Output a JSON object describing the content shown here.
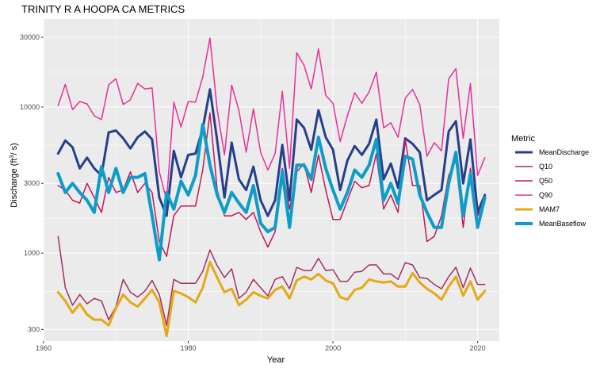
{
  "chart_data": {
    "type": "line",
    "title": "TRINITY R A HOOPA CA  METRICS",
    "xlabel": "Year",
    "ylabel": "Discharge (ft",
    "ylabel_sup": "3",
    "ylabel_suffix": "/ s)",
    "xlim": [
      1960,
      2023
    ],
    "ylim": [
      250,
      40000
    ],
    "y_scale": "log10",
    "x_ticks": [
      1960,
      1980,
      2000,
      2020
    ],
    "x_tick_labels": [
      "1960",
      "1980",
      "2000",
      "2020"
    ],
    "y_ticks": [
      300,
      1000,
      3000,
      10000,
      30000
    ],
    "y_tick_labels": [
      "300",
      "1000",
      "3000",
      "10000",
      "30000"
    ],
    "grid": true,
    "legend_title": "Metric",
    "legend_position": "right",
    "x": [
      1962,
      1963,
      1964,
      1965,
      1966,
      1967,
      1968,
      1969,
      1970,
      1971,
      1972,
      1973,
      1974,
      1975,
      1976,
      1977,
      1978,
      1979,
      1980,
      1981,
      1982,
      1983,
      1984,
      1985,
      1986,
      1987,
      1988,
      1989,
      1990,
      1991,
      1992,
      1993,
      1994,
      1995,
      1996,
      1997,
      1998,
      1999,
      2000,
      2001,
      2002,
      2003,
      2004,
      2005,
      2006,
      2007,
      2008,
      2009,
      2010,
      2011,
      2012,
      2013,
      2014,
      2015,
      2016,
      2017,
      2018,
      2019,
      2020,
      2021
    ],
    "series": [
      {
        "name": "MeanDischarge",
        "color": "#263F8C",
        "width": 3,
        "values": [
          4800,
          5900,
          5300,
          3800,
          4500,
          3800,
          3400,
          6700,
          6900,
          6100,
          5200,
          6200,
          6800,
          6000,
          2400,
          1800,
          5000,
          3300,
          4700,
          4800,
          7100,
          13200,
          5900,
          2400,
          5700,
          3200,
          2700,
          3900,
          2300,
          1800,
          2300,
          5500,
          2300,
          8200,
          7200,
          5100,
          9500,
          6200,
          5100,
          2700,
          4300,
          5400,
          4700,
          5600,
          8200,
          3200,
          4100,
          2800,
          6100,
          5600,
          4900,
          2300,
          2500,
          2700,
          6800,
          8000,
          3000,
          6000,
          1900,
          2500
        ]
      },
      {
        "name": "Q10",
        "color": "#A0306A",
        "width": 1.5,
        "values": [
          1300,
          580,
          440,
          520,
          450,
          490,
          470,
          350,
          430,
          660,
          540,
          500,
          550,
          650,
          520,
          320,
          660,
          620,
          620,
          620,
          750,
          1050,
          820,
          680,
          780,
          490,
          540,
          660,
          580,
          510,
          660,
          690,
          570,
          800,
          760,
          760,
          920,
          760,
          770,
          640,
          640,
          740,
          750,
          830,
          830,
          720,
          720,
          660,
          860,
          830,
          680,
          670,
          610,
          570,
          690,
          800,
          580,
          790,
          610,
          610
        ]
      },
      {
        "name": "Q50",
        "color": "#C2185B",
        "width": 1.5,
        "values": [
          2900,
          2700,
          2300,
          2200,
          3000,
          2400,
          1900,
          3300,
          2600,
          2700,
          3600,
          2600,
          3000,
          2600,
          1200,
          950,
          1800,
          2100,
          2100,
          2100,
          3700,
          9100,
          2700,
          1800,
          1800,
          1900,
          1700,
          1900,
          1400,
          1100,
          1400,
          3800,
          2000,
          3600,
          4100,
          2600,
          4700,
          2700,
          1700,
          1700,
          2300,
          3100,
          2800,
          2900,
          4800,
          2000,
          2500,
          1900,
          6000,
          2900,
          2900,
          1200,
          1300,
          1800,
          3400,
          4300,
          1500,
          3800,
          1800,
          2200
        ]
      },
      {
        "name": "Q90",
        "color": "#E8309B",
        "width": 1.5,
        "values": [
          10200,
          14300,
          9600,
          10900,
          10500,
          8700,
          8200,
          14200,
          15600,
          10400,
          11200,
          14500,
          13300,
          13500,
          3600,
          2300,
          10800,
          7300,
          10900,
          10800,
          16100,
          29600,
          9600,
          4700,
          14100,
          9500,
          4900,
          9700,
          4900,
          3700,
          4800,
          12800,
          3800,
          23500,
          19300,
          13300,
          25000,
          12000,
          10600,
          5800,
          8700,
          12500,
          10600,
          12700,
          17300,
          7200,
          7800,
          6200,
          11500,
          13200,
          10400,
          4600,
          5700,
          5000,
          15600,
          18300,
          6100,
          14500,
          3400,
          4500
        ]
      },
      {
        "name": "MAM7",
        "color": "#E5A817",
        "width": 3,
        "values": [
          540,
          470,
          390,
          450,
          380,
          350,
          350,
          320,
          420,
          520,
          460,
          430,
          490,
          560,
          460,
          270,
          550,
          530,
          500,
          460,
          580,
          870,
          680,
          540,
          570,
          440,
          480,
          540,
          510,
          490,
          560,
          590,
          490,
          650,
          690,
          660,
          720,
          650,
          620,
          500,
          480,
          560,
          580,
          660,
          640,
          630,
          640,
          590,
          590,
          730,
          630,
          570,
          530,
          480,
          590,
          690,
          510,
          640,
          480,
          550
        ]
      },
      {
        "name": "MeanBaseflow",
        "color": "#0D9DC8",
        "width": 4,
        "values": [
          3500,
          2600,
          3000,
          2600,
          2300,
          1900,
          3900,
          2600,
          3800,
          2600,
          3300,
          3300,
          3500,
          1800,
          900,
          2600,
          2000,
          3100,
          2500,
          3400,
          7600,
          4000,
          2500,
          1900,
          2600,
          2200,
          1900,
          2900,
          1600,
          1400,
          1500,
          3600,
          1500,
          4000,
          4000,
          3200,
          6200,
          3800,
          2700,
          2000,
          2600,
          3700,
          3300,
          4000,
          6000,
          2300,
          3000,
          2200,
          4600,
          4400,
          2500,
          1900,
          1500,
          1500,
          3000,
          4900,
          1800,
          3500,
          1500,
          2400
        ]
      }
    ]
  }
}
